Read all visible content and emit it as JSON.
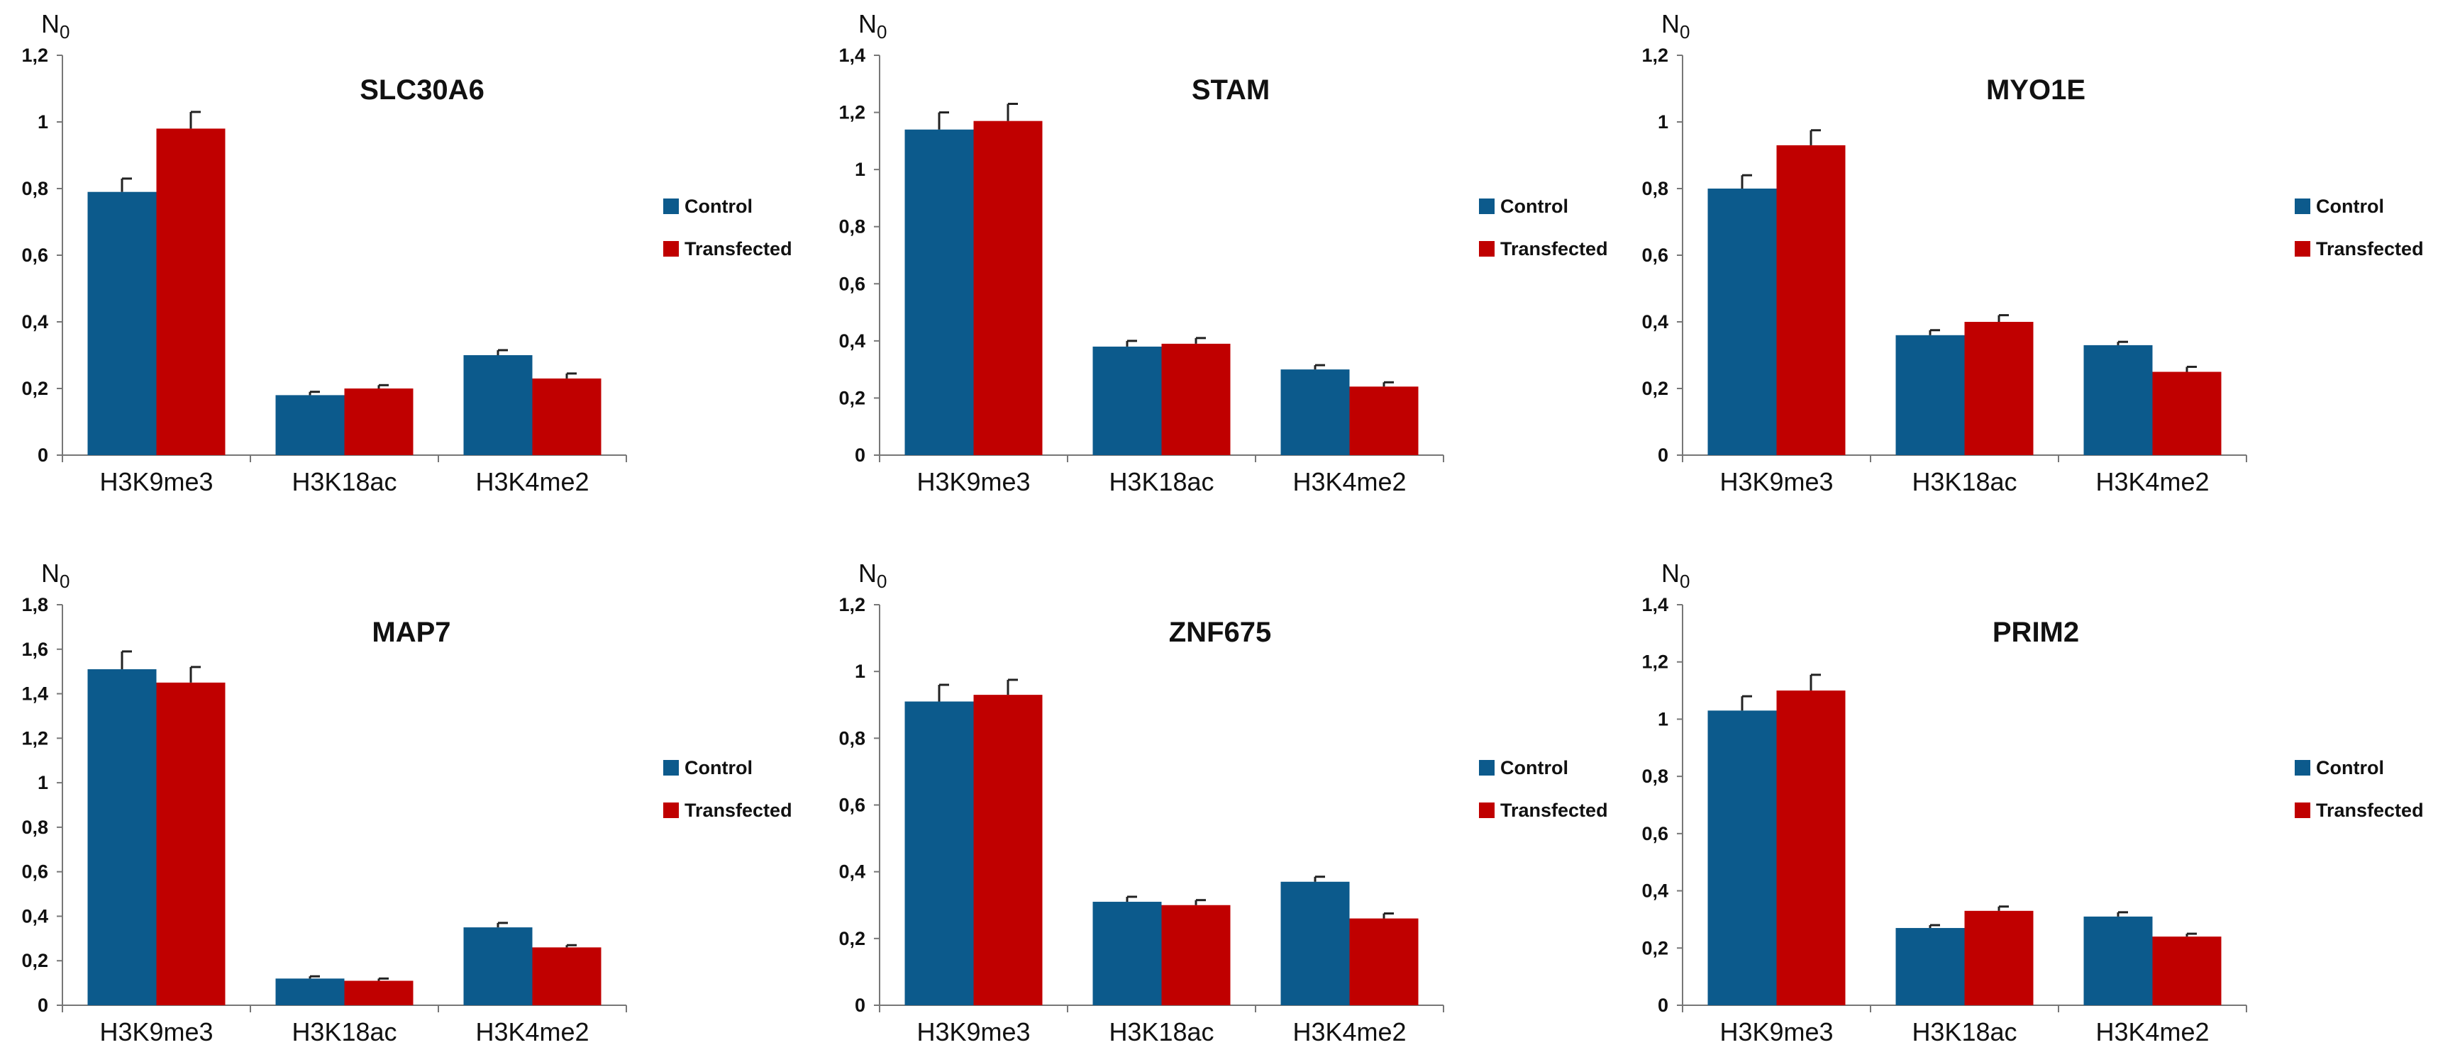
{
  "colors": {
    "control": "#0c5a8c",
    "transfected": "#c00000"
  },
  "chart_data": [
    {
      "type": "bar",
      "title": "SLC30A6",
      "ylabel": "N0",
      "categories": [
        "H3K9me3",
        "H3K18ac",
        "H3K4me2"
      ],
      "yticks": [
        "0",
        "0,2",
        "0,4",
        "0,6",
        "0,8",
        "1",
        "1,2"
      ],
      "ylim": [
        0,
        1.2
      ],
      "grid": false,
      "legend_position": "right",
      "series": [
        {
          "name": "Control",
          "values": [
            0.79,
            0.18,
            0.3
          ],
          "errors": [
            0.04,
            0.01,
            0.015
          ]
        },
        {
          "name": "Transfected",
          "values": [
            0.98,
            0.2,
            0.23
          ],
          "errors": [
            0.05,
            0.01,
            0.015
          ]
        }
      ]
    },
    {
      "type": "bar",
      "title": "STAM",
      "ylabel": "N0",
      "categories": [
        "H3K9me3",
        "H3K18ac",
        "H3K4me2"
      ],
      "yticks": [
        "0",
        "0,2",
        "0,4",
        "0,6",
        "0,8",
        "1",
        "1,2",
        "1,4"
      ],
      "ylim": [
        0,
        1.4
      ],
      "grid": false,
      "legend_position": "right",
      "series": [
        {
          "name": "Control",
          "values": [
            1.14,
            0.38,
            0.3
          ],
          "errors": [
            0.06,
            0.02,
            0.015
          ]
        },
        {
          "name": "Transfected",
          "values": [
            1.17,
            0.39,
            0.24
          ],
          "errors": [
            0.06,
            0.02,
            0.015
          ]
        }
      ]
    },
    {
      "type": "bar",
      "title": "MYO1E",
      "ylabel": "N0",
      "categories": [
        "H3K9me3",
        "H3K18ac",
        "H3K4me2"
      ],
      "yticks": [
        "0",
        "0,2",
        "0,4",
        "0,6",
        "0,8",
        "1",
        "1,2"
      ],
      "ylim": [
        0,
        1.2
      ],
      "grid": false,
      "legend_position": "right",
      "series": [
        {
          "name": "Control",
          "values": [
            0.8,
            0.36,
            0.33
          ],
          "errors": [
            0.04,
            0.015,
            0.01
          ]
        },
        {
          "name": "Transfected",
          "values": [
            0.93,
            0.4,
            0.25
          ],
          "errors": [
            0.045,
            0.02,
            0.015
          ]
        }
      ]
    },
    {
      "type": "bar",
      "title": "MAP7",
      "ylabel": "N0",
      "categories": [
        "H3K9me3",
        "H3K18ac",
        "H3K4me2"
      ],
      "yticks": [
        "0",
        "0,2",
        "0,4",
        "0,6",
        "0,8",
        "1",
        "1,2",
        "1,4",
        "1,6",
        "1,8"
      ],
      "ylim": [
        0,
        1.8
      ],
      "grid": false,
      "legend_position": "right",
      "series": [
        {
          "name": "Control",
          "values": [
            1.51,
            0.12,
            0.35
          ],
          "errors": [
            0.08,
            0.01,
            0.02
          ]
        },
        {
          "name": "Transfected",
          "values": [
            1.45,
            0.11,
            0.26
          ],
          "errors": [
            0.07,
            0.01,
            0.01
          ]
        }
      ]
    },
    {
      "type": "bar",
      "title": "ZNF675",
      "ylabel": "N0",
      "categories": [
        "H3K9me3",
        "H3K18ac",
        "H3K4me2"
      ],
      "yticks": [
        "0",
        "0,2",
        "0,4",
        "0,6",
        "0,8",
        "1",
        "1,2"
      ],
      "ylim": [
        0,
        1.2
      ],
      "grid": false,
      "legend_position": "right",
      "series": [
        {
          "name": "Control",
          "values": [
            0.91,
            0.31,
            0.37
          ],
          "errors": [
            0.05,
            0.015,
            0.015
          ]
        },
        {
          "name": "Transfected",
          "values": [
            0.93,
            0.3,
            0.26
          ],
          "errors": [
            0.045,
            0.015,
            0.015
          ]
        }
      ]
    },
    {
      "type": "bar",
      "title": "PRIM2",
      "ylabel": "N0",
      "categories": [
        "H3K9me3",
        "H3K18ac",
        "H3K4me2"
      ],
      "yticks": [
        "0",
        "0,2",
        "0,4",
        "0,6",
        "0,8",
        "1",
        "1,2",
        "1,4"
      ],
      "ylim": [
        0,
        1.4
      ],
      "grid": false,
      "legend_position": "right",
      "series": [
        {
          "name": "Control",
          "values": [
            1.03,
            0.27,
            0.31
          ],
          "errors": [
            0.05,
            0.01,
            0.015
          ]
        },
        {
          "name": "Transfected",
          "values": [
            1.1,
            0.33,
            0.24
          ],
          "errors": [
            0.055,
            0.015,
            0.01
          ]
        }
      ]
    }
  ]
}
